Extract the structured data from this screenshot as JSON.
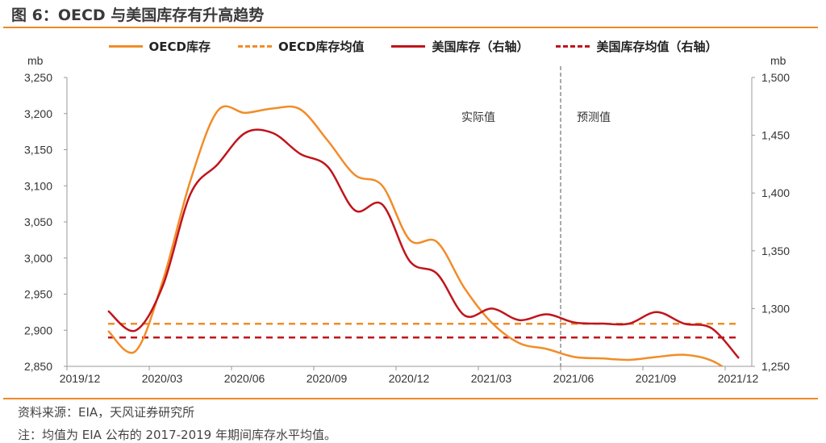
{
  "title": "图 6：OECD 与美国库存有升高趋势",
  "source": "资料来源：EIA，天风证券研究所",
  "note": "注：均值为 EIA 公布的 2017-2019 年期间库存水平均值。",
  "colors": {
    "oecd": "#f28c28",
    "us": "#c0141c",
    "accent": "#ef8a24"
  },
  "chart_data": {
    "type": "line",
    "title": "图 6：OECD 与美国库存有升高趋势",
    "ylabel": "mb",
    "y2label": "mb",
    "ylim": [
      2850,
      3250
    ],
    "y2lim": [
      1250,
      1500
    ],
    "yticks": [
      "2,850",
      "2,900",
      "2,950",
      "3,000",
      "3,050",
      "3,100",
      "3,150",
      "3,200",
      "3,250"
    ],
    "y2ticks": [
      "1,250",
      "1,300",
      "1,350",
      "1,400",
      "1,450",
      "1,500"
    ],
    "xticks": [
      "2019/12",
      "2020/03",
      "2020/06",
      "2020/09",
      "2020/12",
      "2021/03",
      "2021/06",
      "2021/09",
      "2021/12"
    ],
    "x_months_from_2019_12": [
      1.5,
      2.5,
      3.5,
      4.5,
      5.5,
      6.5,
      7.5,
      8.5,
      9.5,
      10.5,
      11.5,
      12.5,
      13.5,
      14.5,
      15.5,
      16.5,
      17.5,
      18.5,
      19.5,
      20.5,
      21.5,
      22.5,
      23.5,
      24.5
    ],
    "series": [
      {
        "name": "OECD库存",
        "axis": "left",
        "style": "solid",
        "values": [
          2899,
          2871,
          2969,
          3107,
          3204,
          3201,
          3207,
          3206,
          3163,
          3115,
          3100,
          3025,
          3022,
          2958,
          2910,
          2882,
          2874,
          2863,
          2861,
          2859,
          2863,
          2866,
          2858,
          2835
        ]
      },
      {
        "name": "OECD库存均值",
        "axis": "left",
        "style": "dashed",
        "value": 2909
      },
      {
        "name": "美国库存（右轴）",
        "axis": "right",
        "style": "solid",
        "values": [
          1298,
          1281,
          1320,
          1399,
          1425,
          1452,
          1452,
          1434,
          1423,
          1385,
          1390,
          1341,
          1330,
          1294,
          1300,
          1290,
          1295,
          1288,
          1287,
          1287,
          1297,
          1287,
          1283,
          1257
        ]
      },
      {
        "name": "美国库存均值（右轴）",
        "axis": "right",
        "style": "dashed",
        "value": 1275
      }
    ],
    "divider": {
      "x_months_from_2019_12": 18,
      "label_left": "实际值",
      "label_right": "预测值"
    },
    "legend": "top"
  }
}
